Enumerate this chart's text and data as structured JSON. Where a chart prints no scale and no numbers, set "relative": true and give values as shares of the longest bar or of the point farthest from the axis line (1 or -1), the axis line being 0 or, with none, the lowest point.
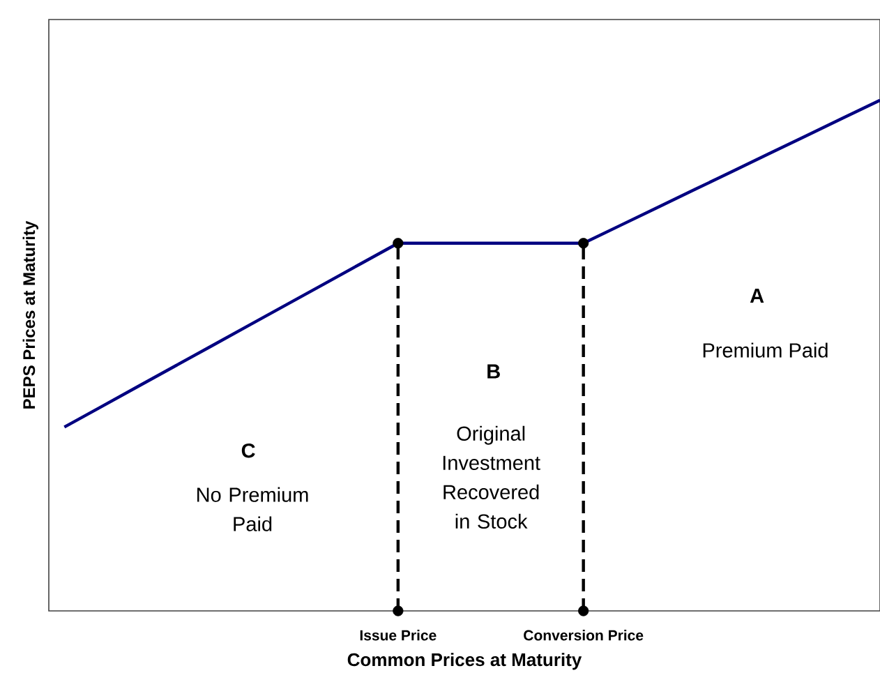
{
  "chart_data": {
    "type": "line",
    "relative": true,
    "xlabel": "Common Prices at Maturity",
    "ylabel": "PEPS Prices at Maturity",
    "categories": [
      null,
      null,
      null,
      null,
      null,
      null,
      null,
      null,
      null,
      "Issue Price",
      null,
      null,
      null,
      null,
      "Conversion Price",
      null,
      null,
      null,
      null,
      null,
      null,
      null,
      null
    ],
    "series": [
      {
        "color": "#000080",
        "marker": "none",
        "line_style": "solid",
        "values": [
          0.36,
          0.4,
          0.44,
          0.48,
          0.52,
          0.56,
          0.6,
          0.64,
          0.68,
          0.72,
          0.72,
          0.72,
          0.72,
          0.72,
          0.72,
          0.755,
          0.79,
          0.825,
          0.86,
          0.895,
          0.93,
          0.965,
          1.0
        ]
      },
      {
        "type": "scatter",
        "color": "#000000",
        "marker": "circle",
        "x": [
          "Issue Price",
          "Conversion Price",
          "Issue Price",
          "Conversion Price"
        ],
        "values": [
          0.72,
          0.72,
          0,
          0
        ]
      }
    ],
    "ref_lines": [
      {
        "axis": "x",
        "value": "Issue Price",
        "color": "#000000",
        "line_style": "dashed"
      },
      {
        "axis": "x",
        "value": "Conversion Price",
        "color": "#000000",
        "line_style": "dashed"
      }
    ],
    "annotations": [
      "A",
      "Premium Paid",
      "B",
      "Original Investment Recovered in Stock",
      "C",
      "No Premium Paid"
    ]
  }
}
